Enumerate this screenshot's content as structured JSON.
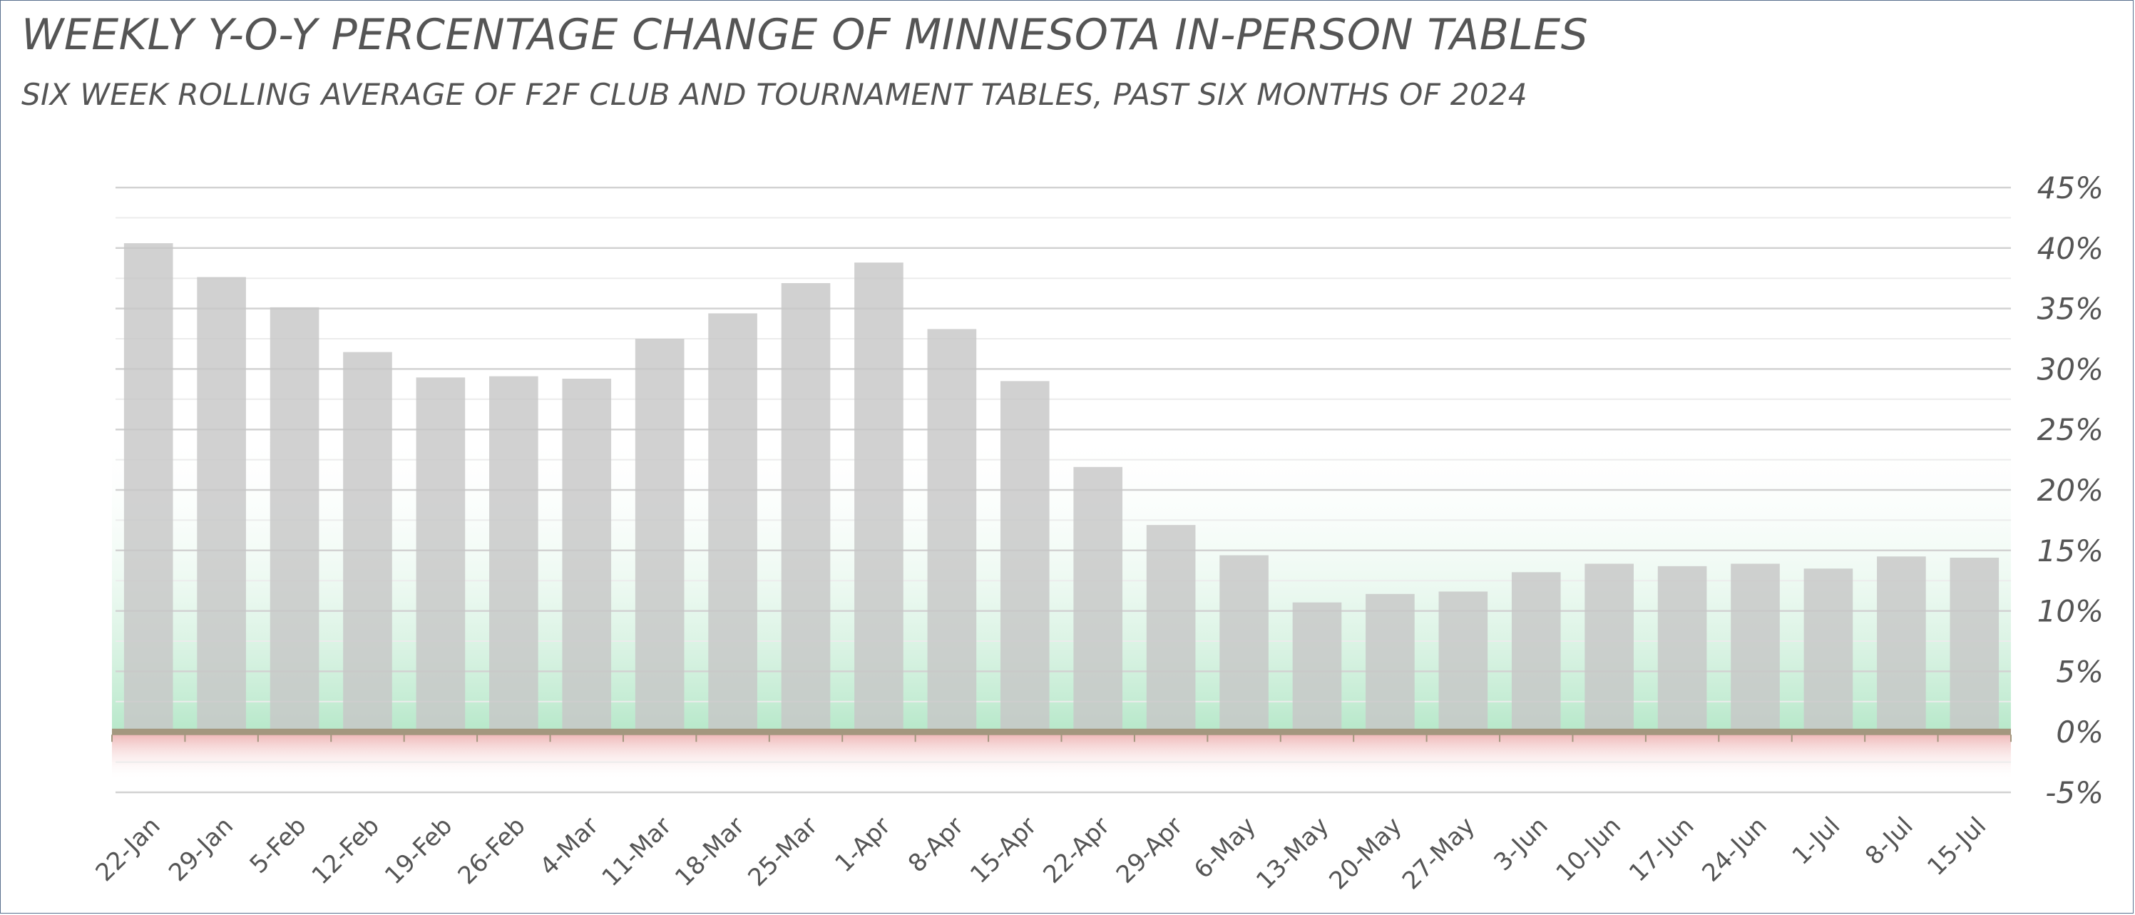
{
  "chart_data": {
    "type": "bar",
    "title": "WEEKLY Y-O-Y PERCENTAGE CHANGE OF MINNESOTA IN-PERSON TABLES",
    "subtitle": "SIX WEEK ROLLING AVERAGE OF F2F CLUB AND TOURNAMENT TABLES, PAST SIX MONTHS OF 2024",
    "xlabel": "",
    "ylabel": "",
    "ylim": [
      -5,
      45
    ],
    "y_ticks": [
      "45%",
      "40%",
      "35%",
      "30%",
      "25%",
      "20%",
      "15%",
      "10%",
      "5%",
      "0%",
      "-5%"
    ],
    "y_tick_values": [
      45,
      40,
      35,
      30,
      25,
      20,
      15,
      10,
      5,
      0,
      -5
    ],
    "y_axis_side": "right",
    "grid": true,
    "legend": "none",
    "categories": [
      "22-Jan",
      "29-Jan",
      "5-Feb",
      "12-Feb",
      "19-Feb",
      "26-Feb",
      "4-Mar",
      "11-Mar",
      "18-Mar",
      "25-Mar",
      "1-Apr",
      "8-Apr",
      "15-Apr",
      "22-Apr",
      "29-Apr",
      "6-May",
      "13-May",
      "20-May",
      "27-May",
      "3-Jun",
      "10-Jun",
      "17-Jun",
      "24-Jun",
      "1-Jul",
      "8-Jul",
      "15-Jul"
    ],
    "values": [
      40.4,
      37.6,
      35.1,
      31.4,
      29.3,
      29.4,
      29.2,
      32.5,
      34.6,
      37.1,
      38.8,
      33.3,
      29.0,
      21.9,
      17.1,
      14.6,
      10.7,
      11.4,
      11.6,
      13.2,
      13.9,
      13.7,
      13.9,
      13.5,
      14.5,
      14.4
    ],
    "colors": {
      "bar": "#c7c7c7",
      "positive_band": "#9fe0b8",
      "negative_band": "#eaa3a3",
      "zero_line": "#a3977f",
      "grid_major": "#d2d2d2",
      "grid_minor": "#ececec",
      "tick_text": "#555555"
    }
  }
}
